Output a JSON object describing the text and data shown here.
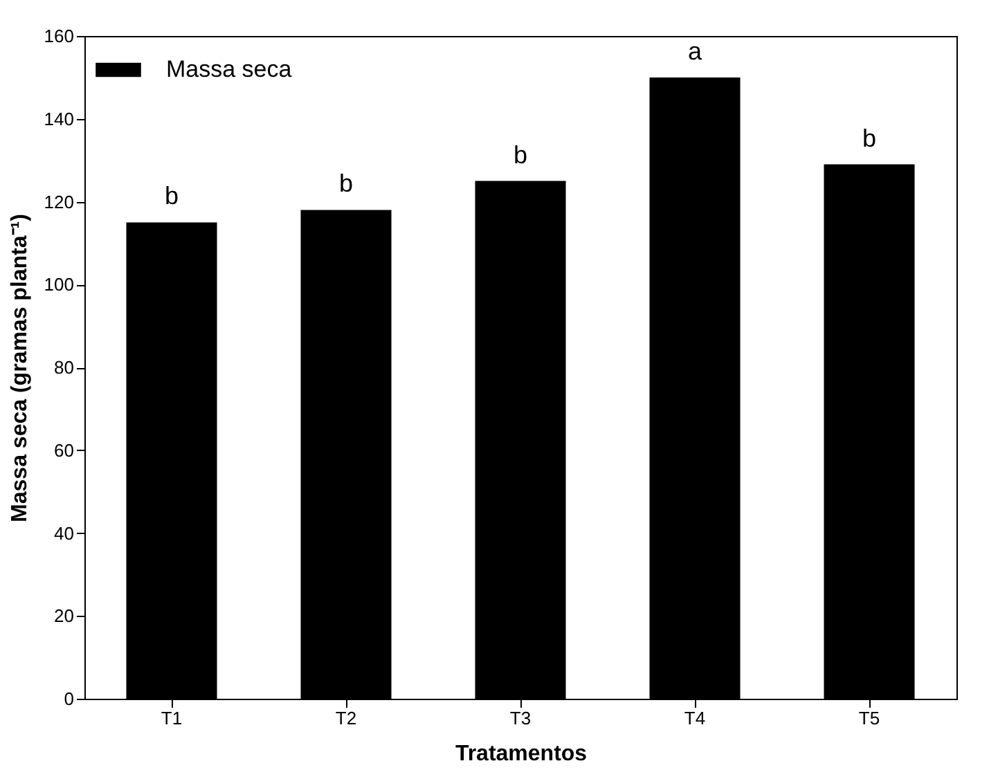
{
  "chart_data": {
    "type": "bar",
    "xlabel": "Tratamentos",
    "ylabel": "Massa seca (gramas planta⁻¹)",
    "categories": [
      "T1",
      "T2",
      "T3",
      "T4",
      "T5"
    ],
    "series": [
      {
        "name": "Massa seca",
        "color": "#000000",
        "values": [
          115,
          118,
          125,
          150,
          129
        ]
      }
    ],
    "ylim": [
      0,
      160
    ],
    "yticks": [
      0,
      20,
      40,
      60,
      80,
      100,
      120,
      140,
      160
    ],
    "annotations": [
      {
        "text": "b",
        "x": "T1",
        "y": 115
      },
      {
        "text": "b",
        "x": "T2",
        "y": 118
      },
      {
        "text": "b",
        "x": "T3",
        "y": 125
      },
      {
        "text": "a",
        "x": "T4",
        "y": 150
      },
      {
        "text": "b",
        "x": "T5",
        "y": 129
      }
    ],
    "legend": "top left",
    "grid": false
  }
}
